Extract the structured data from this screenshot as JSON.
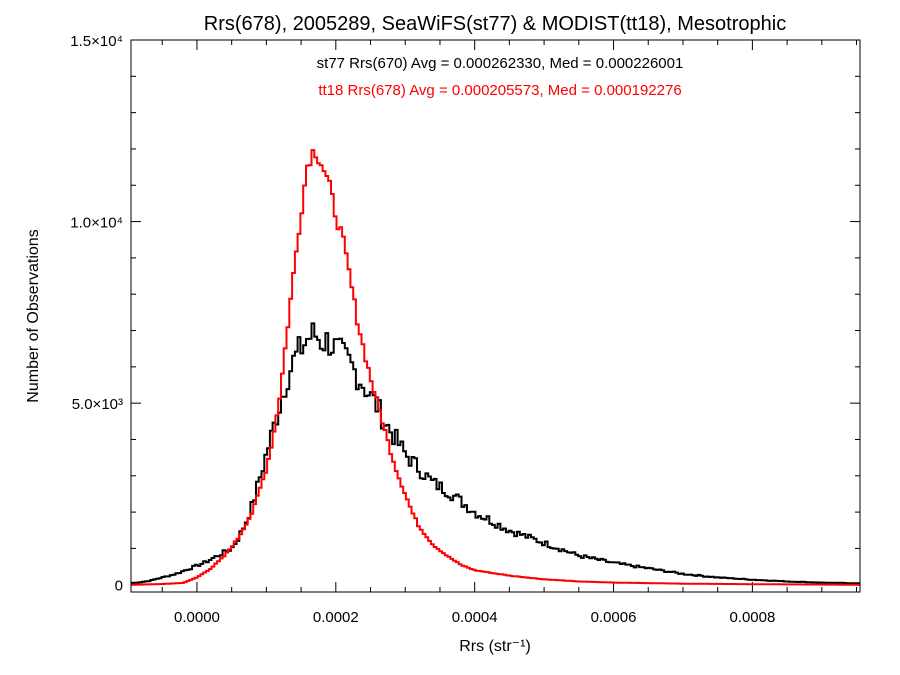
{
  "chart_data": {
    "type": "line",
    "title": "Rrs(678), 2005289, SeaWiFS(st77) & MODIST(tt18), Mesotrophic",
    "xlabel": "Rrs (str⁻¹)",
    "ylabel": "Number of Observations",
    "xlim": [
      -9.5e-05,
      0.000955
    ],
    "ylim": [
      -200,
      15000
    ],
    "x_ticks": [
      {
        "value": 0.0,
        "label": "0.0000"
      },
      {
        "value": 0.0002,
        "label": "0.0002"
      },
      {
        "value": 0.0004,
        "label": "0.0004"
      },
      {
        "value": 0.0006,
        "label": "0.0006"
      },
      {
        "value": 0.0008,
        "label": "0.0008"
      }
    ],
    "y_ticks": [
      {
        "value": 0,
        "label": "0"
      },
      {
        "value": 5000,
        "label": "5.0×10³"
      },
      {
        "value": 10000,
        "label": "1.0×10⁴"
      },
      {
        "value": 15000,
        "label": "1.5×10⁴"
      }
    ],
    "annotations": [
      {
        "text": "st77 Rrs(670) Avg = 0.000262330, Med = 0.000226001",
        "color": "#000000"
      },
      {
        "text": "tt18 Rrs(678) Avg = 0.000205573, Med = 0.000192276",
        "color": "#ff0000"
      }
    ],
    "style": "histogram-step",
    "series": [
      {
        "name": "st77",
        "color": "#000000",
        "x": [
          -9e-05,
          -7e-05,
          -5e-05,
          -3e-05,
          -1e-05,
          1e-05,
          3e-05,
          5e-05,
          6e-05,
          7e-05,
          8e-05,
          9e-05,
          0.0001,
          0.00011,
          0.00012,
          0.00013,
          0.00014,
          0.00015,
          0.00016,
          0.00017,
          0.00018,
          0.00019,
          0.0002,
          0.00021,
          0.00022,
          0.00023,
          0.00024,
          0.00025,
          0.00026,
          0.00027,
          0.00028,
          0.00029,
          0.0003,
          0.00032,
          0.00034,
          0.00036,
          0.00038,
          0.0004,
          0.00042,
          0.00045,
          0.0005,
          0.00055,
          0.0006,
          0.00065,
          0.0007,
          0.00075,
          0.0008,
          0.00085,
          0.0009,
          0.00095
        ],
        "y": [
          50,
          100,
          200,
          300,
          450,
          600,
          800,
          1000,
          1300,
          1700,
          2200,
          2900,
          3600,
          4300,
          5000,
          5700,
          6200,
          6500,
          6800,
          6900,
          6700,
          6700,
          6500,
          6300,
          6100,
          5800,
          5500,
          5200,
          4900,
          4500,
          4200,
          3900,
          3600,
          3200,
          2800,
          2600,
          2300,
          2000,
          1800,
          1500,
          1150,
          800,
          600,
          450,
          300,
          200,
          140,
          90,
          60,
          40
        ]
      },
      {
        "name": "tt18",
        "color": "#ff0000",
        "x": [
          -9e-05,
          -5e-05,
          -2e-05,
          0.0,
          2e-05,
          4e-05,
          6e-05,
          8e-05,
          9e-05,
          0.0001,
          0.00011,
          0.00012,
          0.00013,
          0.00014,
          0.00015,
          0.00016,
          0.00017,
          0.00018,
          0.00019,
          0.0002,
          0.00021,
          0.00022,
          0.00023,
          0.00024,
          0.00025,
          0.00026,
          0.00027,
          0.00028,
          0.00029,
          0.0003,
          0.00031,
          0.00032,
          0.00034,
          0.00036,
          0.00038,
          0.0004,
          0.00045,
          0.0005,
          0.00055,
          0.0006,
          0.0007,
          0.0008,
          0.0009,
          0.00095
        ],
        "y": [
          0,
          20,
          50,
          200,
          450,
          800,
          1300,
          2000,
          2600,
          3200,
          4100,
          5300,
          7000,
          8700,
          10300,
          11700,
          12000,
          11600,
          11000,
          10200,
          9500,
          8500,
          7400,
          6500,
          5700,
          5000,
          4300,
          3600,
          3000,
          2500,
          2000,
          1600,
          1100,
          800,
          550,
          400,
          250,
          150,
          90,
          60,
          30,
          15,
          5,
          0
        ]
      }
    ]
  }
}
